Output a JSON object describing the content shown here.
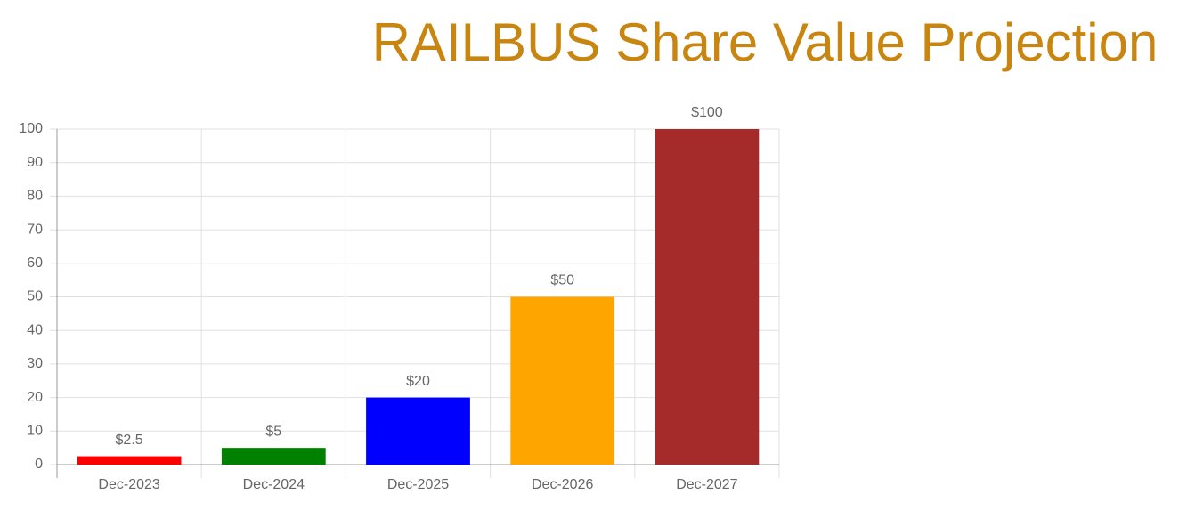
{
  "chart_data": {
    "type": "bar",
    "title": "RAILBUS Share Value Projection",
    "categories": [
      "Dec-2023",
      "Dec-2024",
      "Dec-2025",
      "Dec-2026",
      "Dec-2027"
    ],
    "values": [
      2.5,
      5,
      20,
      50,
      100
    ],
    "value_labels": [
      "$2.5",
      "$5",
      "$20",
      "$50",
      "$100"
    ],
    "colors": [
      "#ff0000",
      "#008000",
      "#0000ff",
      "#ffa500",
      "#a52a2a"
    ],
    "ylim": [
      0,
      100
    ],
    "yticks": [
      0,
      10,
      20,
      30,
      40,
      50,
      60,
      70,
      80,
      90,
      100
    ],
    "grid": true
  }
}
